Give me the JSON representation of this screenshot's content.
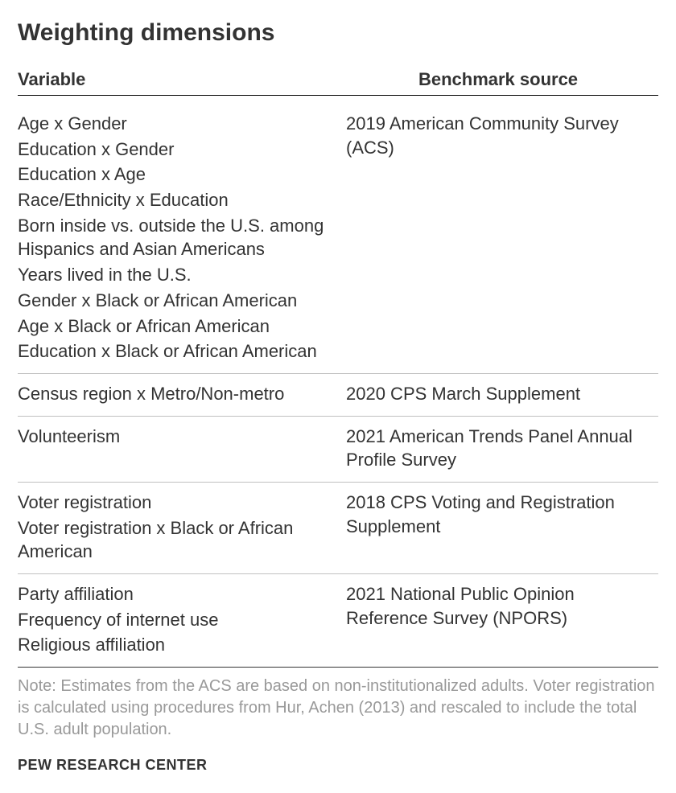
{
  "title": "Weighting dimensions",
  "headers": {
    "variable": "Variable",
    "benchmark": "Benchmark source"
  },
  "groups": [
    {
      "variables": [
        "Age x Gender",
        "Education x Gender",
        "Education x Age",
        "Race/Ethnicity x Education",
        "Born inside vs. outside the U.S. among Hispanics and Asian Americans",
        "Years lived in the U.S.",
        "Gender x Black or African American",
        "Age x Black or African American",
        "Education x Black or African American"
      ],
      "source": "2019 American Community Survey (ACS)"
    },
    {
      "variables": [
        "Census region x Metro/Non-metro"
      ],
      "source": "2020 CPS March Supplement"
    },
    {
      "variables": [
        "Volunteerism"
      ],
      "source": "2021 American Trends Panel Annual Profile Survey"
    },
    {
      "variables": [
        "Voter registration",
        "Voter registration x Black or African American"
      ],
      "source": "2018 CPS Voting and Registration Supplement"
    },
    {
      "variables": [
        "Party affiliation",
        "Frequency of internet use",
        "Religious affiliation"
      ],
      "source": "2021 National Public Opinion Reference Survey (NPORS)"
    }
  ],
  "note": "Note: Estimates from the ACS are based on non-institutionalized adults. Voter registration is calculated using procedures from Hur, Achen (2013) and rescaled to include the total U.S. adult population.",
  "attribution": "PEW RESEARCH CENTER",
  "style": {
    "title_fontsize": 30,
    "header_fontsize": 22,
    "body_fontsize": 22,
    "note_fontsize": 20,
    "attribution_fontsize": 18,
    "text_color": "#333333",
    "note_color": "#999999",
    "header_border_color": "#000000",
    "group_border_color": "#c0c0c0",
    "last_border_color": "#333333",
    "background_color": "#ffffff",
    "font_family_headings": "Arial, Helvetica, sans-serif",
    "font_family_body": "Arial, Helvetica, sans-serif",
    "col_var_width_pct": 50,
    "col_src_width_pct": 50
  }
}
